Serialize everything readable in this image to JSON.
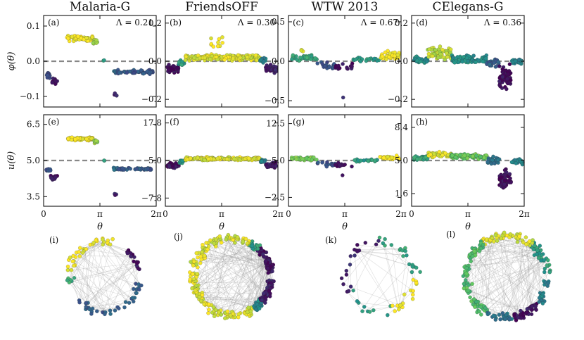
{
  "figure": {
    "palette": [
      "#440154",
      "#3b528b",
      "#21918c",
      "#5ec962",
      "#fde725"
    ],
    "dashed_line_color": "#888888",
    "network_edge_color": "#9a9a9a"
  },
  "chart_data": [
    {
      "type": "scatter",
      "panel_label": "(a)",
      "network": "Malaria-G",
      "title": "Malaria-G",
      "lambda": "Λ = 0.21",
      "ylabel": "φ(θ)",
      "xlabel": "",
      "xlim": [
        0,
        6.2832
      ],
      "ylim": [
        -0.13,
        0.13
      ],
      "yticks": [
        0.1,
        0.0,
        -0.1
      ],
      "ytick_labels": [
        "0.1",
        "0.0",
        "−0.1"
      ],
      "xticks": [
        0,
        3.1416,
        6.2832
      ],
      "xtick_labels": [
        "0",
        "π",
        "2π"
      ],
      "reference_line": 0.0,
      "segments": [
        {
          "from": 0.15,
          "to": 0.38,
          "center": -0.04,
          "spread": 0.008,
          "count": 14,
          "color": 0.25
        },
        {
          "from": 0.38,
          "to": 0.85,
          "center": -0.06,
          "spread": 0.012,
          "count": 14,
          "color": 0.05
        },
        {
          "from": 1.3,
          "to": 2.75,
          "center": 0.065,
          "spread": 0.006,
          "count": 60,
          "color": 1.0
        },
        {
          "from": 2.75,
          "to": 3.0,
          "center": 0.055,
          "spread": 0.008,
          "count": 10,
          "color": 0.85
        },
        {
          "from": 3.3,
          "to": 3.4,
          "center": 0.003,
          "spread": 0.002,
          "count": 2,
          "color": 0.6
        },
        {
          "from": 3.9,
          "to": 4.1,
          "center": -0.03,
          "spread": 0.004,
          "count": 5,
          "color": 0.35
        },
        {
          "from": 3.95,
          "to": 4.1,
          "center": -0.095,
          "spread": 0.005,
          "count": 4,
          "color": 0.1
        },
        {
          "from": 4.1,
          "to": 6.1,
          "center": -0.03,
          "spread": 0.005,
          "count": 55,
          "color": 0.28
        }
      ]
    },
    {
      "type": "scatter",
      "panel_label": "(b)",
      "network": "FriendsOFF",
      "title": "FriendsOFF",
      "lambda": "Λ = 0.30",
      "ylabel": "",
      "xlabel": "",
      "xlim": [
        0,
        6.2832
      ],
      "ylim": [
        -0.24,
        0.24
      ],
      "yticks": [
        0.2,
        0.0,
        -0.2
      ],
      "ytick_labels": [
        "0.2",
        "0.0",
        "−0.2"
      ],
      "xticks": [
        0,
        3.1416,
        6.2832
      ],
      "xtick_labels": [
        "0",
        "π",
        "2π"
      ],
      "reference_line": 0.0,
      "segments": [
        {
          "from": 0.1,
          "to": 0.75,
          "center": -0.04,
          "spread": 0.018,
          "count": 45,
          "color": 0.05
        },
        {
          "from": 0.75,
          "to": 1.1,
          "center": -0.01,
          "spread": 0.01,
          "count": 15,
          "color": 0.55
        },
        {
          "from": 1.1,
          "to": 5.3,
          "center": 0.02,
          "spread": 0.012,
          "count": 180,
          "color": 0.95
        },
        {
          "from": 2.5,
          "to": 3.2,
          "center": 0.09,
          "spread": 0.035,
          "count": 10,
          "color": 1.0
        },
        {
          "from": 5.3,
          "to": 5.6,
          "center": 0.005,
          "spread": 0.01,
          "count": 15,
          "color": 0.45
        },
        {
          "from": 5.6,
          "to": 6.2,
          "center": -0.04,
          "spread": 0.015,
          "count": 40,
          "color": 0.08
        }
      ]
    },
    {
      "type": "scatter",
      "panel_label": "(c)",
      "network": "WTW 2013",
      "title": "WTW 2013",
      "lambda": "Λ = 0.67",
      "ylabel": "",
      "xlabel": "",
      "xlim": [
        0,
        6.2832
      ],
      "ylim": [
        -0.58,
        0.58
      ],
      "yticks": [
        0.5,
        0.0,
        -0.5
      ],
      "ytick_labels": [
        "0.5",
        "0.0",
        "−0.5"
      ],
      "xticks": [
        0,
        3.1416,
        6.2832
      ],
      "xtick_labels": [
        "0",
        "π",
        "2π"
      ],
      "reference_line": 0.0,
      "segments": [
        {
          "from": 0.1,
          "to": 1.6,
          "center": 0.04,
          "spread": 0.03,
          "count": 40,
          "color": 0.6
        },
        {
          "from": 0.5,
          "to": 1.0,
          "center": 0.13,
          "spread": 0.02,
          "count": 3,
          "color": 0.95
        },
        {
          "from": 1.6,
          "to": 2.6,
          "center": -0.06,
          "spread": 0.04,
          "count": 18,
          "color": 0.25
        },
        {
          "from": 2.6,
          "to": 3.6,
          "center": -0.08,
          "spread": 0.04,
          "count": 16,
          "color": 0.05
        },
        {
          "from": 3.0,
          "to": 3.1,
          "center": -0.45,
          "spread": 0.01,
          "count": 1,
          "color": 0.1
        },
        {
          "from": 3.6,
          "to": 5.1,
          "center": 0.02,
          "spread": 0.02,
          "count": 20,
          "color": 0.55
        },
        {
          "from": 5.1,
          "to": 6.2,
          "center": 0.07,
          "spread": 0.05,
          "count": 35,
          "color": 1.0
        }
      ]
    },
    {
      "type": "scatter",
      "panel_label": "(d)",
      "network": "CElegans-G",
      "title": "CElegans-G",
      "lambda": "Λ = 0.36",
      "ylabel": "",
      "xlabel": "",
      "xlim": [
        0,
        6.2832
      ],
      "ylim": [
        -0.24,
        0.24
      ],
      "yticks": [
        0.2,
        0.0,
        -0.2
      ],
      "ytick_labels": [
        "0.2",
        "0.0",
        "−0.2"
      ],
      "xticks": [
        0,
        3.1416,
        6.2832
      ],
      "xtick_labels": [
        "0",
        "π",
        "2π"
      ],
      "reference_line": 0.0,
      "segments": [
        {
          "from": 0.1,
          "to": 0.9,
          "center": 0.01,
          "spread": 0.015,
          "count": 40,
          "color": 0.5
        },
        {
          "from": 0.9,
          "to": 2.2,
          "center": 0.04,
          "spread": 0.025,
          "count": 55,
          "color": 0.9
        },
        {
          "from": 2.2,
          "to": 4.2,
          "center": 0.01,
          "spread": 0.015,
          "count": 90,
          "color": 0.5
        },
        {
          "from": 4.2,
          "to": 4.9,
          "center": -0.01,
          "spread": 0.015,
          "count": 30,
          "color": 0.3
        },
        {
          "from": 4.9,
          "to": 5.55,
          "center": -0.08,
          "spread": 0.045,
          "count": 60,
          "color": 0.05
        },
        {
          "from": 5.55,
          "to": 6.2,
          "center": 0.0,
          "spread": 0.012,
          "count": 25,
          "color": 0.45
        }
      ]
    },
    {
      "type": "scatter",
      "panel_label": "(e)",
      "network": "Malaria-G",
      "title": "",
      "lambda": "",
      "ylabel": "u(θ)",
      "xlabel": "θ",
      "xlim": [
        0,
        6.2832
      ],
      "ylim": [
        3.1,
        6.9
      ],
      "yticks": [
        6.5,
        5.0,
        3.5
      ],
      "ytick_labels": [
        "6.5",
        "5.0",
        "3.5"
      ],
      "xticks": [
        0,
        3.1416,
        6.2832
      ],
      "xtick_labels": [
        "0",
        "π",
        "2π"
      ],
      "reference_line": 5.0,
      "segments": [
        {
          "from": 0.15,
          "to": 0.38,
          "center": 4.6,
          "spread": 0.05,
          "count": 14,
          "color": 0.25
        },
        {
          "from": 0.38,
          "to": 0.85,
          "center": 4.3,
          "spread": 0.1,
          "count": 14,
          "color": 0.05
        },
        {
          "from": 1.3,
          "to": 2.75,
          "center": 5.9,
          "spread": 0.06,
          "count": 60,
          "color": 1.0
        },
        {
          "from": 2.75,
          "to": 3.0,
          "center": 5.8,
          "spread": 0.08,
          "count": 10,
          "color": 0.85
        },
        {
          "from": 3.3,
          "to": 3.4,
          "center": 5.0,
          "spread": 0.02,
          "count": 2,
          "color": 0.6
        },
        {
          "from": 3.9,
          "to": 4.1,
          "center": 4.65,
          "spread": 0.05,
          "count": 5,
          "color": 0.35
        },
        {
          "from": 3.95,
          "to": 4.1,
          "center": 3.6,
          "spread": 0.06,
          "count": 4,
          "color": 0.1
        },
        {
          "from": 4.1,
          "to": 6.1,
          "center": 4.65,
          "spread": 0.04,
          "count": 55,
          "color": 0.28
        }
      ]
    },
    {
      "type": "scatter",
      "panel_label": "(f)",
      "network": "FriendsOFF",
      "title": "",
      "lambda": "",
      "ylabel": "",
      "xlabel": "θ",
      "xlim": [
        0,
        6.2832
      ],
      "ylim": [
        -10.6,
        20.6
      ],
      "yticks": [
        17.8,
        5.0,
        -7.8
      ],
      "ytick_labels": [
        "17.8",
        "5.0",
        "−7.8"
      ],
      "xticks": [
        0,
        3.1416,
        6.2832
      ],
      "xtick_labels": [
        "0",
        "π",
        "2π"
      ],
      "reference_line": 5.0,
      "segments": [
        {
          "from": 0.1,
          "to": 0.75,
          "center": 3.3,
          "spread": 0.7,
          "count": 45,
          "color": 0.05
        },
        {
          "from": 0.75,
          "to": 1.1,
          "center": 4.5,
          "spread": 0.5,
          "count": 15,
          "color": 0.55
        },
        {
          "from": 1.1,
          "to": 5.3,
          "center": 5.6,
          "spread": 0.4,
          "count": 180,
          "color": 0.95
        },
        {
          "from": 5.3,
          "to": 5.6,
          "center": 5.0,
          "spread": 0.5,
          "count": 15,
          "color": 0.45
        },
        {
          "from": 5.6,
          "to": 6.2,
          "center": 3.4,
          "spread": 0.7,
          "count": 40,
          "color": 0.08
        }
      ]
    },
    {
      "type": "scatter",
      "panel_label": "(g)",
      "network": "WTW 2013",
      "title": "",
      "lambda": "",
      "ylabel": "",
      "xlabel": "θ",
      "xlim": [
        0,
        6.2832
      ],
      "ylim": [
        -4.3,
        14.3
      ],
      "yticks": [
        12.5,
        5.0,
        -2.5
      ],
      "ytick_labels": [
        "12.5",
        "5.0",
        "−2.5"
      ],
      "xticks": [
        0,
        3.1416,
        6.2832
      ],
      "xtick_labels": [
        "0",
        "π",
        "2π"
      ],
      "reference_line": 5.0,
      "segments": [
        {
          "from": 0.1,
          "to": 1.6,
          "center": 5.4,
          "spread": 0.3,
          "count": 40,
          "color": 0.8
        },
        {
          "from": 1.6,
          "to": 2.6,
          "center": 4.3,
          "spread": 0.4,
          "count": 18,
          "color": 0.25
        },
        {
          "from": 2.6,
          "to": 3.6,
          "center": 4.1,
          "spread": 0.4,
          "count": 16,
          "color": 0.05
        },
        {
          "from": 3.0,
          "to": 3.1,
          "center": 2.0,
          "spread": 0.1,
          "count": 1,
          "color": 0.1
        },
        {
          "from": 3.6,
          "to": 5.1,
          "center": 5.0,
          "spread": 0.2,
          "count": 20,
          "color": 0.55
        },
        {
          "from": 5.1,
          "to": 6.2,
          "center": 5.5,
          "spread": 0.3,
          "count": 35,
          "color": 1.0
        }
      ]
    },
    {
      "type": "scatter",
      "panel_label": "(h)",
      "network": "CElegans-G",
      "title": "",
      "lambda": "",
      "ylabel": "",
      "xlabel": "θ",
      "xlim": [
        0,
        6.2832
      ],
      "ylim": [
        0.3,
        9.7
      ],
      "yticks": [
        8.4,
        5.0,
        1.6
      ],
      "ytick_labels": [
        "8.4",
        "5.0",
        "1.6"
      ],
      "xticks": [
        0,
        3.1416,
        6.2832
      ],
      "xtick_labels": [
        "0",
        "π",
        "2π"
      ],
      "reference_line": 5.0,
      "segments": [
        {
          "from": 0.1,
          "to": 0.9,
          "center": 5.2,
          "spread": 0.2,
          "count": 40,
          "color": 0.6
        },
        {
          "from": 0.9,
          "to": 2.2,
          "center": 5.6,
          "spread": 0.2,
          "count": 55,
          "color": 0.95
        },
        {
          "from": 2.2,
          "to": 4.2,
          "center": 5.4,
          "spread": 0.2,
          "count": 90,
          "color": 0.75
        },
        {
          "from": 4.2,
          "to": 4.9,
          "center": 5.0,
          "spread": 0.3,
          "count": 30,
          "color": 0.4
        },
        {
          "from": 4.9,
          "to": 5.55,
          "center": 3.0,
          "spread": 0.9,
          "count": 60,
          "color": 0.05
        },
        {
          "from": 5.55,
          "to": 6.2,
          "center": 4.9,
          "spread": 0.25,
          "count": 25,
          "color": 0.45
        }
      ]
    }
  ],
  "networks": [
    {
      "panel_label": "(i)",
      "network": "Malaria-G",
      "edge_count": 120,
      "arcs": [
        {
          "from": 0.2,
          "to": 0.9,
          "count": 18,
          "color": 0.05
        },
        {
          "from": 1.3,
          "to": 3.0,
          "count": 35,
          "color": 1.0
        },
        {
          "from": 3.0,
          "to": 3.4,
          "count": 6,
          "color": 0.6
        },
        {
          "from": 3.9,
          "to": 6.1,
          "count": 40,
          "color": 0.3
        }
      ]
    },
    {
      "panel_label": "(j)",
      "network": "FriendsOFF",
      "edge_count": 220,
      "arcs": [
        {
          "from": 0.1,
          "to": 0.8,
          "count": 80,
          "color": 0.05
        },
        {
          "from": 0.8,
          "to": 1.1,
          "count": 25,
          "color": 0.55
        },
        {
          "from": 1.1,
          "to": 5.3,
          "count": 200,
          "color": 0.95
        },
        {
          "from": 5.3,
          "to": 5.6,
          "count": 25,
          "color": 0.45
        },
        {
          "from": 5.6,
          "to": 6.2,
          "count": 60,
          "color": 0.08
        }
      ]
    },
    {
      "panel_label": "(k)",
      "network": "WTW 2013",
      "edge_count": 45,
      "arcs": [
        {
          "from": 0.1,
          "to": 1.6,
          "count": 20,
          "color": 0.6
        },
        {
          "from": 1.6,
          "to": 3.6,
          "count": 18,
          "color": 0.1
        },
        {
          "from": 3.6,
          "to": 5.1,
          "count": 10,
          "color": 0.55
        },
        {
          "from": 5.1,
          "to": 6.2,
          "count": 18,
          "color": 1.0
        }
      ]
    },
    {
      "panel_label": "(l)",
      "network": "CElegans-G",
      "edge_count": 200,
      "arcs": [
        {
          "from": 0.1,
          "to": 0.9,
          "count": 40,
          "color": 0.55
        },
        {
          "from": 0.9,
          "to": 2.2,
          "count": 60,
          "color": 0.95
        },
        {
          "from": 2.2,
          "to": 4.2,
          "count": 90,
          "color": 0.7
        },
        {
          "from": 4.2,
          "to": 4.9,
          "count": 25,
          "color": 0.4
        },
        {
          "from": 4.9,
          "to": 5.55,
          "count": 45,
          "color": 0.05
        },
        {
          "from": 5.55,
          "to": 6.2,
          "count": 20,
          "color": 0.45
        }
      ]
    }
  ]
}
